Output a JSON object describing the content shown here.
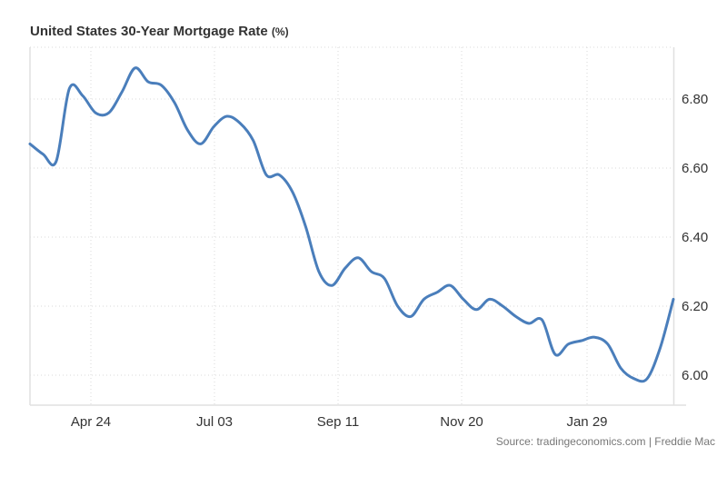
{
  "header": {
    "title": "United States 30-Year Mortgage Rate",
    "unit": "(%)"
  },
  "footer": {
    "source": "Source: tradingeconomics.com | Freddie Mac"
  },
  "colors": {
    "line": "#4a7ebb",
    "grid": "#d9d9d9",
    "axis": "#e0e0e0",
    "text": "#333333"
  },
  "chart_data": {
    "type": "line",
    "title": "United States 30-Year Mortgage Rate (%)",
    "xlabel": "",
    "ylabel": "",
    "x_tick_labels": [
      "Apr 24",
      "Jul 03",
      "Sep 11",
      "Nov 20",
      "Jan 29"
    ],
    "y_tick_labels": [
      "6.00",
      "6.20",
      "6.40",
      "6.60",
      "6.80"
    ],
    "ylim": [
      5.91,
      6.95
    ],
    "grid": true,
    "y_axis_position": "right",
    "series": [
      {
        "name": "30-Year Mortgage Rate",
        "values": [
          6.67,
          6.64,
          6.62,
          6.83,
          6.81,
          6.76,
          6.76,
          6.82,
          6.89,
          6.85,
          6.84,
          6.79,
          6.71,
          6.67,
          6.72,
          6.75,
          6.73,
          6.68,
          6.58,
          6.58,
          6.53,
          6.43,
          6.3,
          6.26,
          6.31,
          6.34,
          6.3,
          6.28,
          6.2,
          6.17,
          6.22,
          6.24,
          6.26,
          6.22,
          6.19,
          6.22,
          6.2,
          6.17,
          6.15,
          6.16,
          6.06,
          6.09,
          6.1,
          6.11,
          6.09,
          6.02,
          5.99,
          5.99,
          6.08,
          6.22
        ]
      }
    ]
  }
}
